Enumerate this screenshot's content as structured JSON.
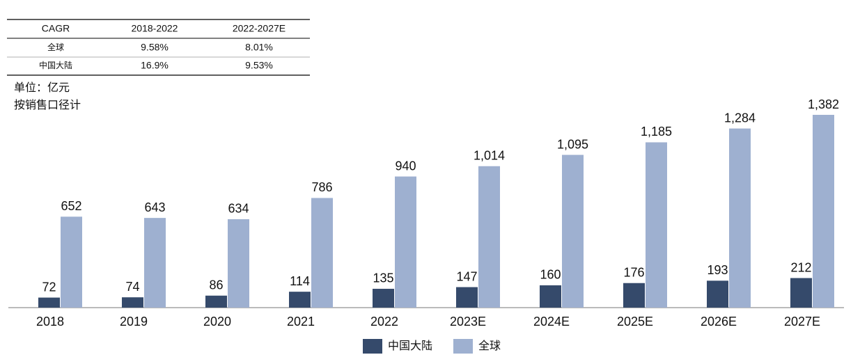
{
  "table": {
    "header": [
      "CAGR",
      "2018-2022",
      "2022-2027E"
    ],
    "rows": [
      [
        "全球",
        "9.58%",
        "8.01%"
      ],
      [
        "中国大陆",
        "16.9%",
        "9.53%"
      ]
    ]
  },
  "notes": [
    "单位：亿元",
    "按销售口径计"
  ],
  "chart_data": {
    "type": "bar",
    "categories": [
      "2018",
      "2019",
      "2020",
      "2021",
      "2022",
      "2023E",
      "2024E",
      "2025E",
      "2026E",
      "2027E"
    ],
    "series": [
      {
        "name": "中国大陆",
        "color": "#354a6b",
        "values": [
          72,
          74,
          86,
          114,
          135,
          147,
          160,
          176,
          193,
          212
        ]
      },
      {
        "name": "全球",
        "color": "#9eb0d0",
        "values": [
          652,
          643,
          634,
          786,
          940,
          1014,
          1095,
          1185,
          1284,
          1382
        ],
        "value_labels": [
          "652",
          "643",
          "634",
          "786",
          "940",
          "1,014",
          "1,095",
          "1,185",
          "1,284",
          "1,382"
        ]
      }
    ],
    "legend": "bottom"
  }
}
